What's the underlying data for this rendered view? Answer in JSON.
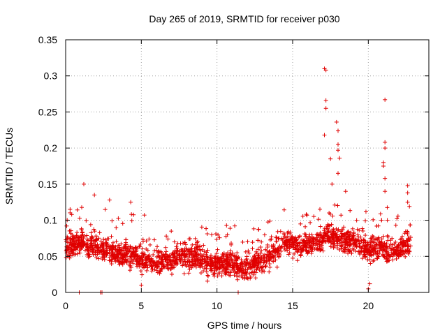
{
  "chart_data": {
    "type": "scatter",
    "title": "Day 265 of 2019, SRMTID for receiver p030",
    "xlabel": "GPS time / hours",
    "ylabel": "SRMTID / TECUs",
    "xlim": [
      0,
      24
    ],
    "ylim": [
      0,
      0.35
    ],
    "xticks": [
      0,
      5,
      10,
      15,
      20
    ],
    "xtick_labels": [
      "0",
      "5",
      "10",
      "15",
      "20"
    ],
    "yticks": [
      0,
      0.05,
      0.1,
      0.15,
      0.2,
      0.25,
      0.3,
      0.35
    ],
    "ytick_labels": [
      "0",
      "0.05",
      "0.1",
      "0.15",
      "0.2",
      "0.25",
      "0.3",
      "0.35"
    ],
    "grid": true,
    "marker": "+",
    "color": "#e00000",
    "series": [
      {
        "name": "SRMTID",
        "trend": [
          [
            0.0,
            0.065
          ],
          [
            0.5,
            0.065
          ],
          [
            1.0,
            0.07
          ],
          [
            1.5,
            0.065
          ],
          [
            2.0,
            0.065
          ],
          [
            2.5,
            0.06
          ],
          [
            3.0,
            0.055
          ],
          [
            3.5,
            0.055
          ],
          [
            4.0,
            0.055
          ],
          [
            4.5,
            0.05
          ],
          [
            5.0,
            0.045
          ],
          [
            5.5,
            0.045
          ],
          [
            6.0,
            0.04
          ],
          [
            6.5,
            0.045
          ],
          [
            7.0,
            0.045
          ],
          [
            7.5,
            0.05
          ],
          [
            8.0,
            0.05
          ],
          [
            8.5,
            0.05
          ],
          [
            9.0,
            0.045
          ],
          [
            9.5,
            0.04
          ],
          [
            10.0,
            0.04
          ],
          [
            10.5,
            0.04
          ],
          [
            11.0,
            0.04
          ],
          [
            11.5,
            0.035
          ],
          [
            12.0,
            0.035
          ],
          [
            12.5,
            0.04
          ],
          [
            13.0,
            0.045
          ],
          [
            13.5,
            0.05
          ],
          [
            14.0,
            0.06
          ],
          [
            14.5,
            0.07
          ],
          [
            15.0,
            0.07
          ],
          [
            15.5,
            0.065
          ],
          [
            16.0,
            0.065
          ],
          [
            16.5,
            0.07
          ],
          [
            17.0,
            0.075
          ],
          [
            17.5,
            0.08
          ],
          [
            18.0,
            0.075
          ],
          [
            18.5,
            0.07
          ],
          [
            19.0,
            0.07
          ],
          [
            19.5,
            0.065
          ],
          [
            20.0,
            0.06
          ],
          [
            20.5,
            0.06
          ],
          [
            21.0,
            0.06
          ],
          [
            21.5,
            0.055
          ],
          [
            22.0,
            0.06
          ],
          [
            22.5,
            0.065
          ],
          [
            22.8,
            0.065
          ]
        ],
        "points": [
          [
            1.2,
            0.15
          ],
          [
            1.9,
            0.135
          ],
          [
            0.4,
            0.108
          ],
          [
            2.9,
            0.128
          ],
          [
            4.3,
            0.125
          ],
          [
            17.1,
            0.31
          ],
          [
            17.2,
            0.308
          ],
          [
            17.2,
            0.266
          ],
          [
            17.2,
            0.255
          ],
          [
            17.1,
            0.218
          ],
          [
            17.5,
            0.185
          ],
          [
            17.9,
            0.236
          ],
          [
            18.0,
            0.224
          ],
          [
            18.0,
            0.205
          ],
          [
            18.0,
            0.197
          ],
          [
            18.1,
            0.186
          ],
          [
            18.0,
            0.165
          ],
          [
            17.6,
            0.15
          ],
          [
            18.5,
            0.14
          ],
          [
            21.1,
            0.267
          ],
          [
            21.1,
            0.208
          ],
          [
            21.1,
            0.2
          ],
          [
            21.0,
            0.18
          ],
          [
            21.0,
            0.175
          ],
          [
            21.1,
            0.158
          ],
          [
            21.1,
            0.14
          ],
          [
            22.6,
            0.148
          ],
          [
            22.6,
            0.138
          ],
          [
            22.6,
            0.125
          ],
          [
            20.0,
            0.005
          ],
          [
            20.1,
            0.012
          ],
          [
            5.0,
            0.01
          ],
          [
            11.4,
            0.0
          ],
          [
            0.9,
            0.0
          ],
          [
            2.3,
            0.0
          ],
          [
            2.4,
            0.0
          ]
        ]
      }
    ]
  }
}
